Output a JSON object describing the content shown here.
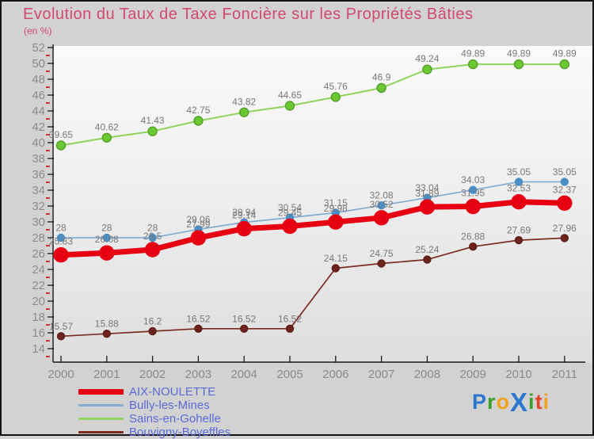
{
  "header": {
    "title": "Evolution du Taux de Taxe Foncière sur les Propriétés Bâties",
    "subtitle": "(en %)"
  },
  "chart_data": {
    "type": "line",
    "x": [
      2000,
      2001,
      2002,
      2003,
      2004,
      2005,
      2006,
      2007,
      2008,
      2009,
      2010,
      2011
    ],
    "series": [
      {
        "name": "AIX-NOULETTE",
        "color": "#e60012",
        "marker_color": "#e60012",
        "marker_stroke": "#e60012",
        "line_width": 7,
        "marker_r": 9,
        "values": [
          25.83,
          26.08,
          26.5,
          27.99,
          29.14,
          29.45,
          29.98,
          30.52,
          31.89,
          31.95,
          32.53,
          32.37
        ]
      },
      {
        "name": "Bully-les-Mines",
        "color": "#85add2",
        "marker_color": "#4a8ec4",
        "marker_stroke": "#4a8ec4",
        "line_width": 1.7,
        "marker_r": 4.5,
        "values": [
          28,
          28,
          28,
          29.06,
          29.94,
          30.54,
          31.15,
          32.08,
          33.04,
          34.03,
          35.05,
          35.05
        ]
      },
      {
        "name": "Sains-en-Gohelle",
        "color": "#8ed45c",
        "marker_color": "#6cc832",
        "marker_stroke": "#53a028",
        "line_width": 2,
        "marker_r": 5.5,
        "values": [
          39.65,
          40.62,
          41.43,
          42.75,
          43.82,
          44.65,
          45.76,
          46.9,
          49.24,
          49.89,
          49.89,
          49.89
        ]
      },
      {
        "name": "Bouvigny-Boyeffles",
        "color": "#7b2b21",
        "marker_color": "#6e241d",
        "marker_stroke": "#5c1d17",
        "line_width": 1.7,
        "marker_r": 4.5,
        "values": [
          15.57,
          15.88,
          16.2,
          16.52,
          16.52,
          16.52,
          24.15,
          24.75,
          25.24,
          26.88,
          27.69,
          27.96
        ]
      }
    ],
    "title": "Evolution du Taux de Taxe Foncière sur les Propriétés Bâties",
    "xlabel": "",
    "ylabel": "(en %)",
    "ylim": [
      14,
      52
    ],
    "ytick_step": 2,
    "grid": false,
    "legend_position": "bottom-left",
    "label_color": "#787878",
    "axis": {
      "line_color": "#1a1a1a",
      "tick_label_color": "#8a8a8a",
      "minor_tick_color": "#cc0000"
    }
  },
  "logo": {
    "text": "ProXiti",
    "letters": [
      {
        "ch": "P",
        "color": "#2b77cf"
      },
      {
        "ch": "r",
        "color": "#3aa02c"
      },
      {
        "ch": "o",
        "color": "#f2a31c"
      },
      {
        "ch": "X",
        "color": "#2b77cf"
      },
      {
        "ch": "i",
        "color": "#3aa02c"
      },
      {
        "ch": "t",
        "color": "#e8432a"
      },
      {
        "ch": "i",
        "color": "#f2a31c"
      }
    ]
  }
}
